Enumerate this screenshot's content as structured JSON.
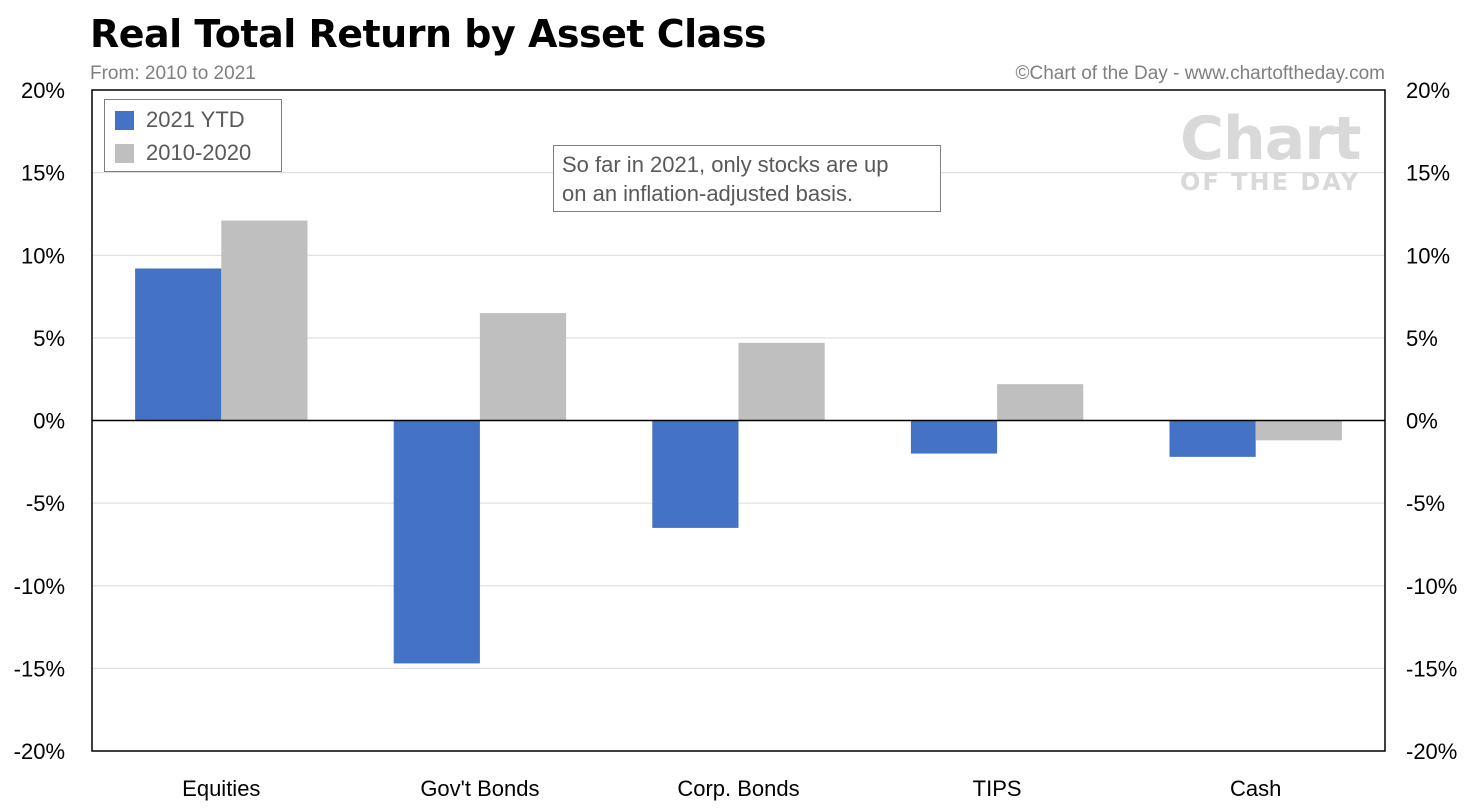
{
  "header": {
    "title": "Real Total Return by Asset Class",
    "subtitle": "From: 2010 to 2021",
    "credit": "©Chart of the Day - www.chartoftheday.com"
  },
  "watermark": {
    "main": "Chart",
    "sub": "OF THE DAY"
  },
  "annotation": {
    "line1": "So far in 2021, only stocks are up",
    "line2": "on an inflation-adjusted basis."
  },
  "colors": {
    "ytd": "#4472c4",
    "decade": "#bfbfbf",
    "gridline": "#d9d9d9"
  },
  "chart_data": {
    "type": "bar",
    "title": "Real Total Return by Asset Class",
    "subtitle": "From: 2010 to 2021",
    "categories": [
      "Equities",
      "Gov't Bonds",
      "Corp. Bonds",
      "TIPS",
      "Cash"
    ],
    "series": [
      {
        "name": "2021 YTD",
        "values": [
          9.2,
          -14.7,
          -6.5,
          -2.0,
          -2.2
        ]
      },
      {
        "name": "2010-2020",
        "values": [
          12.1,
          6.5,
          4.7,
          2.2,
          -1.2
        ]
      }
    ],
    "ylim": [
      -20,
      20
    ],
    "yticks": [
      20,
      15,
      10,
      5,
      0,
      -5,
      -10,
      -15,
      -20
    ],
    "ytick_labels": [
      "20%",
      "15%",
      "10%",
      "5%",
      "0%",
      "-5%",
      "-10%",
      "-15%",
      "-20%"
    ],
    "grid": true,
    "legend_position": "top-left",
    "secondary_axis": true
  }
}
